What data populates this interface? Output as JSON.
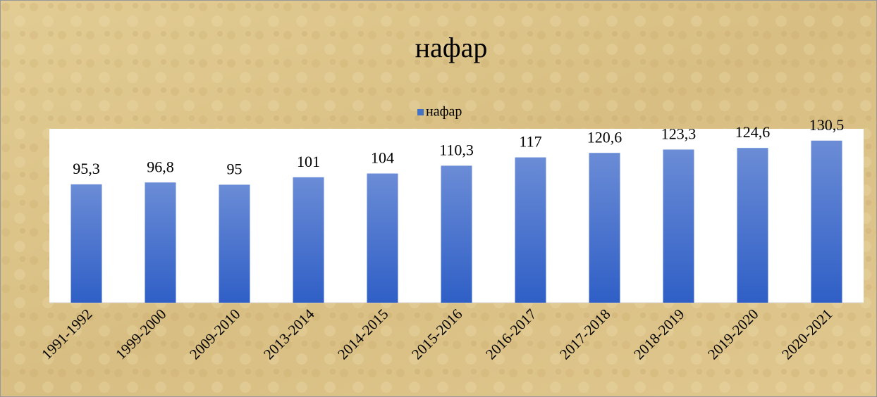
{
  "chart_data": {
    "type": "bar",
    "title": "нафар",
    "categories": [
      "1991-1992",
      "1999-2000",
      "2009-2010",
      "2013-2014",
      "2014-2015",
      "2015-2016",
      "2016-2017",
      "2017-2018",
      "2018-2019",
      "2019-2020",
      "2020-2021"
    ],
    "series": [
      {
        "name": "нафар",
        "color": "#4472c4",
        "values": [
          95.3,
          96.8,
          95,
          101,
          104,
          110.3,
          117,
          120.6,
          123.3,
          124.6,
          130.5
        ],
        "value_labels": [
          "95,3",
          "96,8",
          "95",
          "101",
          "104",
          "110,3",
          "117",
          "120,6",
          "123,3",
          "124,6",
          "130,5"
        ]
      }
    ],
    "ylim": [
      0,
      140
    ],
    "legend": "top"
  }
}
